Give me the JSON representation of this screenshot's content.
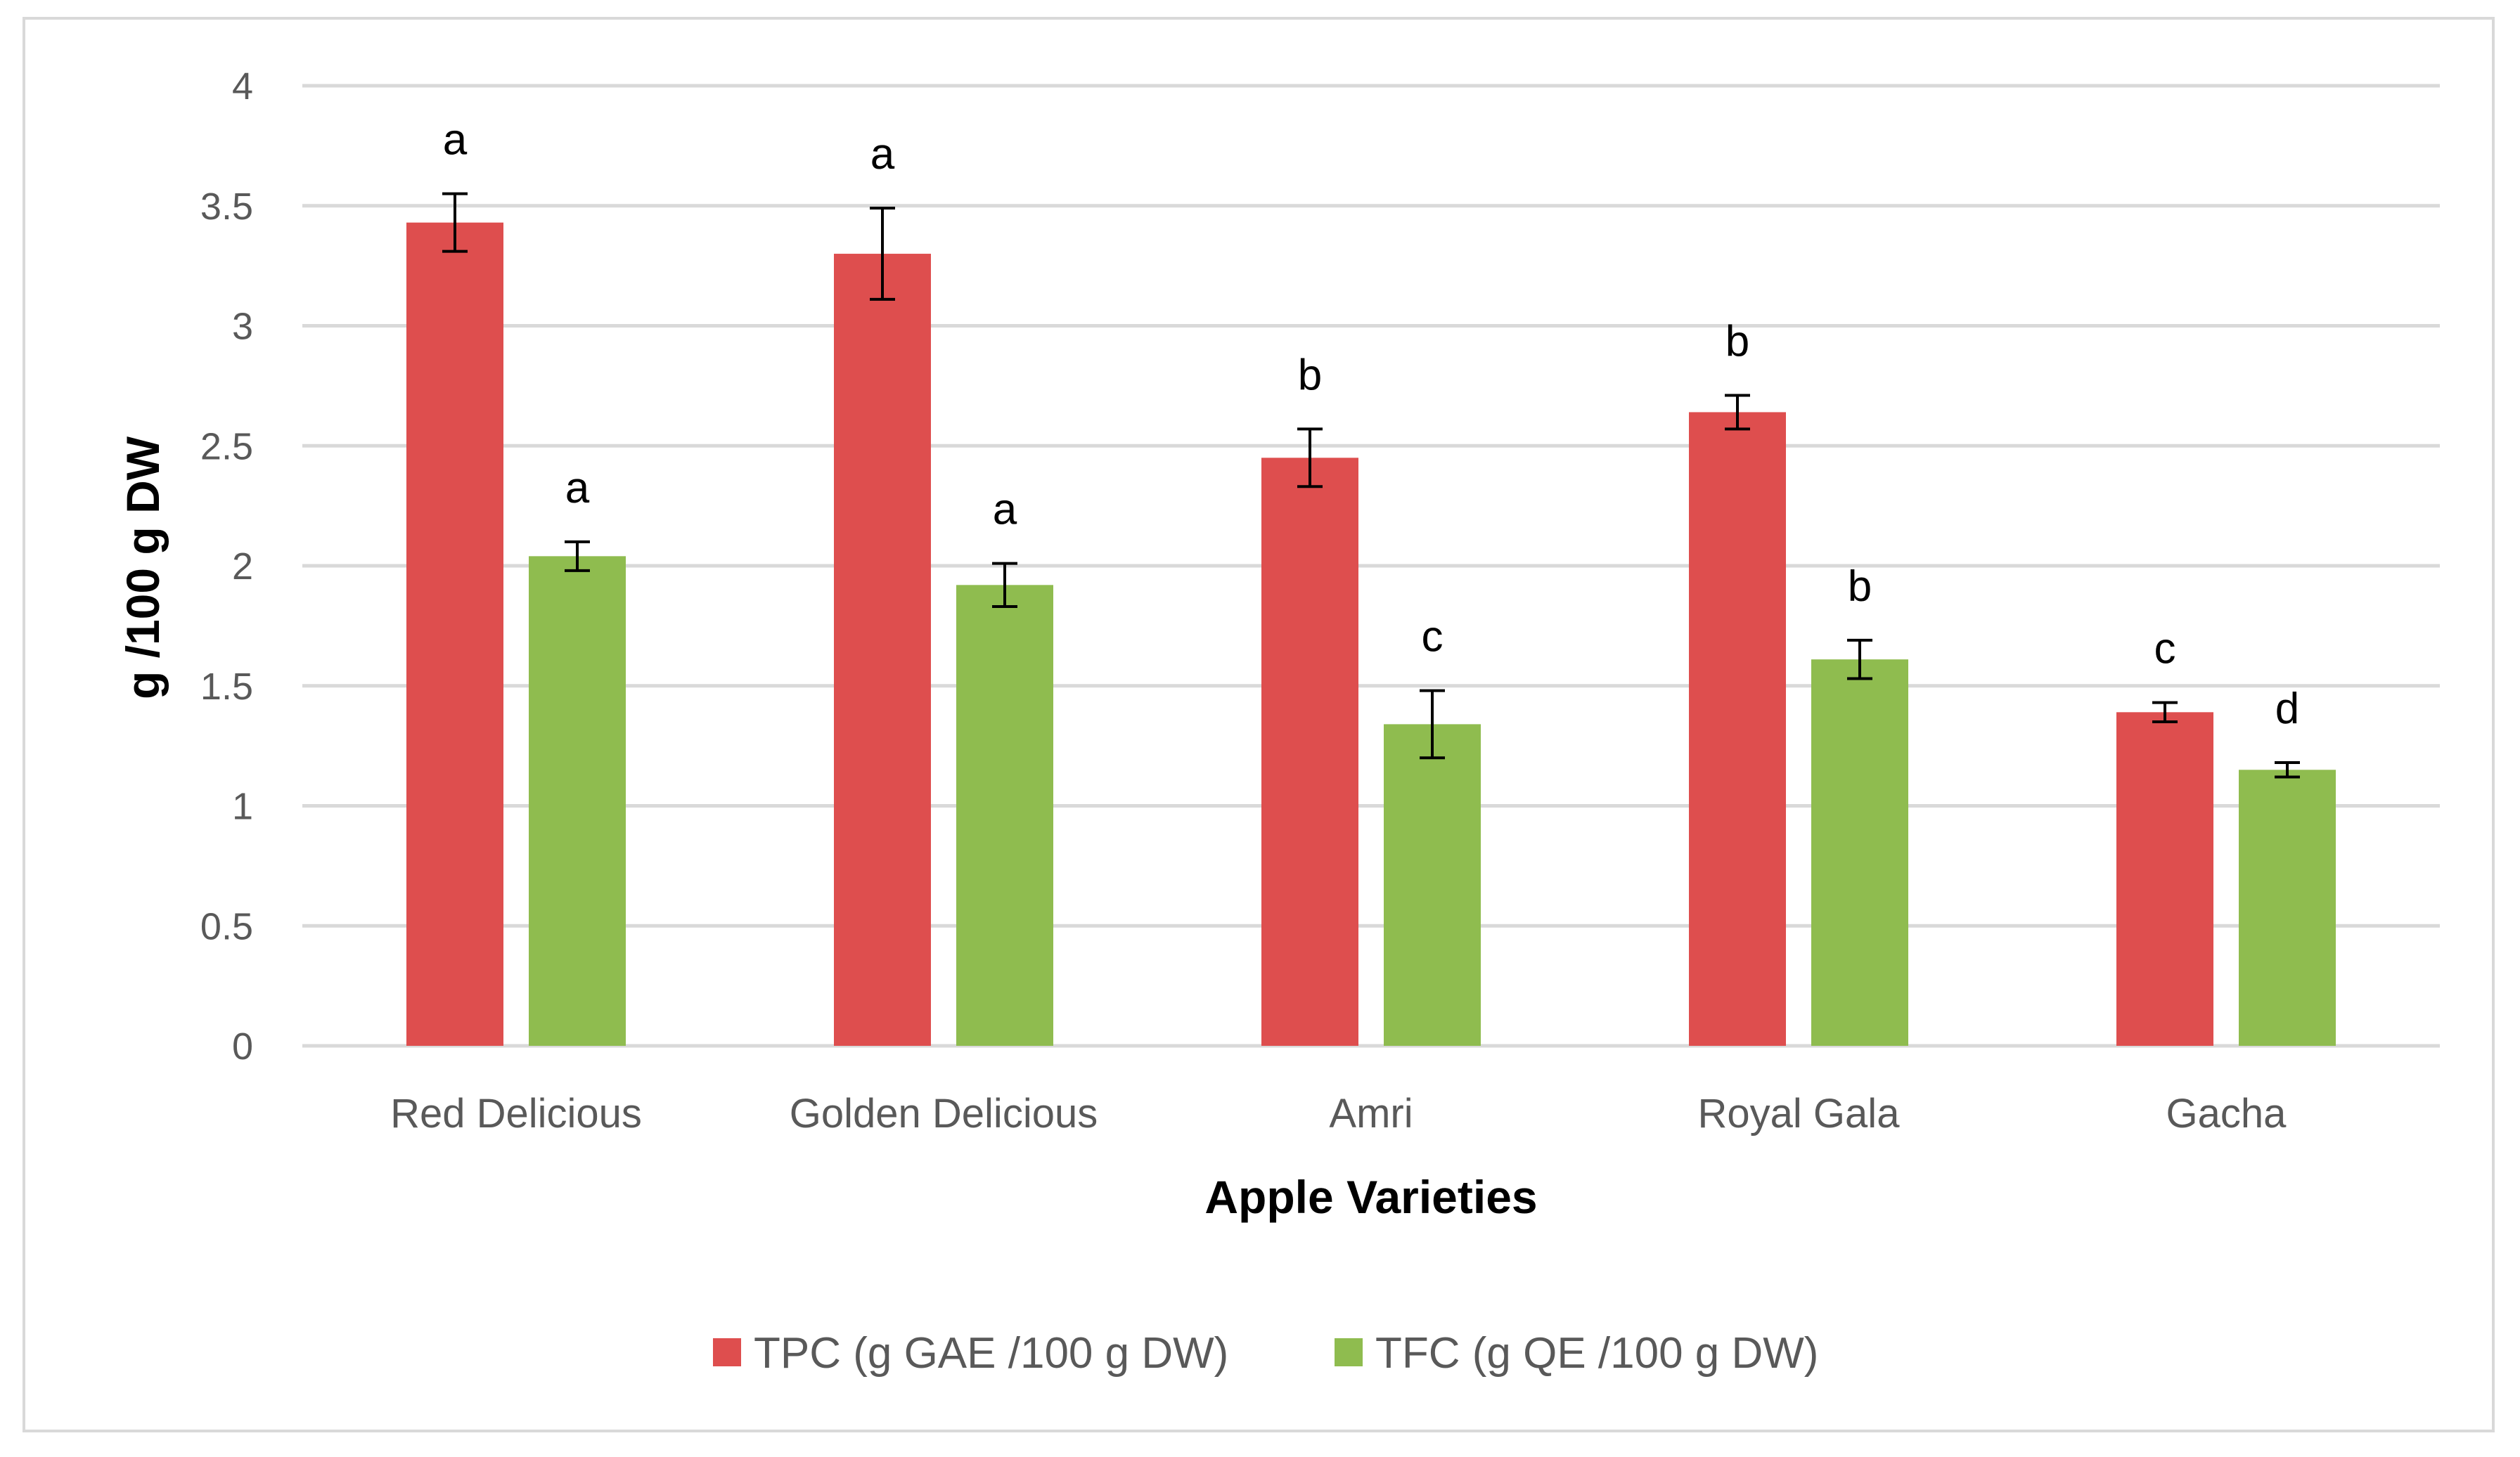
{
  "chart_data": {
    "type": "bar",
    "title": "",
    "xlabel": "Apple Varieties",
    "ylabel": "g /100 g DW",
    "ylim": [
      0,
      4
    ],
    "yticks": [
      0,
      0.5,
      1,
      1.5,
      2,
      2.5,
      3,
      3.5,
      4
    ],
    "ytick_labels": [
      "0",
      "0.5",
      "1",
      "1.5",
      "2",
      "2.5",
      "3",
      "3.5",
      "4"
    ],
    "grid": true,
    "legend_position": "bottom",
    "categories": [
      "Red Delicious",
      "Golden Delicious",
      "Amri",
      "Royal Gala",
      "Gacha"
    ],
    "series": [
      {
        "name": "TPC (g GAE /100 g DW)",
        "color": "#de4e4e",
        "values": [
          3.43,
          3.3,
          2.45,
          2.64,
          1.39
        ],
        "errors": [
          0.12,
          0.19,
          0.12,
          0.07,
          0.04
        ],
        "letters": [
          "a",
          "a",
          "b",
          "b",
          "c"
        ]
      },
      {
        "name": "TFC (g QE /100 g DW)",
        "color": "#8fbc4f",
        "values": [
          2.04,
          1.92,
          1.34,
          1.61,
          1.15
        ],
        "errors": [
          0.06,
          0.09,
          0.14,
          0.08,
          0.03
        ],
        "letters": [
          "a",
          "a",
          "c",
          "b",
          "d"
        ]
      }
    ]
  },
  "colors": {
    "grid": "#d9d9d9",
    "axis": "#d9d9d9",
    "tick_text": "#595959",
    "error_bar": "#000000"
  }
}
